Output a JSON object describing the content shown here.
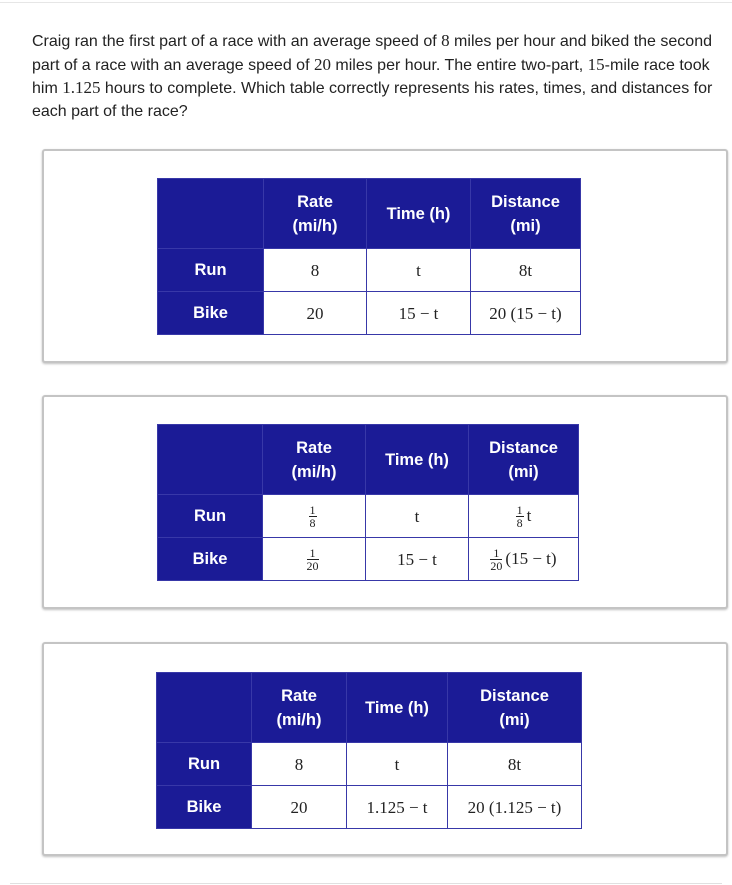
{
  "question": "Craig ran the first part of a race with an average speed of 8 miles per hour and biked the second part of a race with an average speed of 20 miles per hour. The entire two-part, 15-mile race took him 1.125 hours to complete. Which table correctly represents his rates, times, and distances for each part of the race?",
  "question_parts": [
    "Craig ran the first part of a race with an average speed of ",
    "8",
    " miles per hour and biked the second part of a race with an average speed of ",
    "20",
    " miles per hour. The entire two-part, ",
    "15",
    "-mile race took him ",
    "1.125",
    " hours to complete. Which table correctly represents his rates, times, and distances for each part of the race?"
  ],
  "colors": {
    "header_bg": "#1b1b96",
    "header_text": "#ffffff",
    "border": "#3838a8"
  },
  "options": [
    {
      "headers": [
        "",
        "Rate (mi/h)",
        "Time (h)",
        "Distance (mi)"
      ],
      "rows": [
        {
          "label": "Run",
          "cells": [
            {
              "text": "8"
            },
            {
              "text": "t"
            },
            {
              "text": "8t"
            }
          ]
        },
        {
          "label": "Bike",
          "cells": [
            {
              "text": "20"
            },
            {
              "text": "15 − t"
            },
            {
              "text": "20 (15 − t)"
            }
          ]
        }
      ]
    },
    {
      "headers": [
        "",
        "Rate (mi/h)",
        "Time (h)",
        "Distance (mi)"
      ],
      "rows": [
        {
          "label": "Run",
          "cells": [
            {
              "num": "1",
              "den": "8",
              "text": ""
            },
            {
              "text": "t"
            },
            {
              "num": "1",
              "den": "8",
              "text": "t"
            }
          ]
        },
        {
          "label": "Bike",
          "cells": [
            {
              "num": "1",
              "den": "20",
              "text": ""
            },
            {
              "text": "15 − t"
            },
            {
              "num": "1",
              "den": "20",
              "text": "(15 − t)"
            }
          ]
        }
      ]
    },
    {
      "headers": [
        "",
        "Rate (mi/h)",
        "Time (h)",
        "Distance (mi)"
      ],
      "rows": [
        {
          "label": "Run",
          "cells": [
            {
              "text": "8"
            },
            {
              "text": "t"
            },
            {
              "text": "8t"
            }
          ]
        },
        {
          "label": "Bike",
          "cells": [
            {
              "text": "20"
            },
            {
              "text": "1.125 − t"
            },
            {
              "text": "20 (1.125 − t)"
            }
          ]
        }
      ]
    }
  ]
}
